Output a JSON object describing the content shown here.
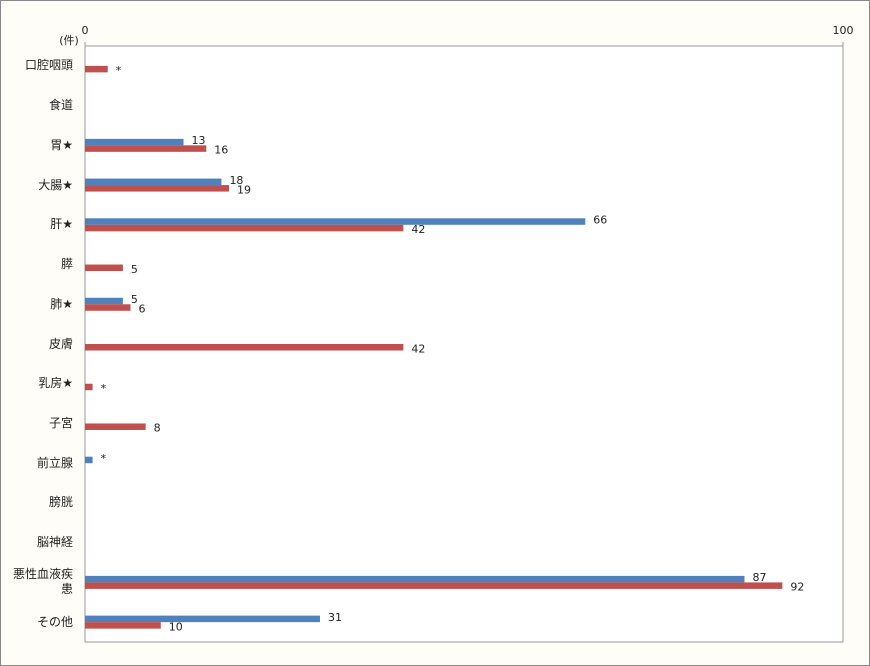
{
  "chart_data": {
    "type": "bar",
    "orientation": "horizontal",
    "unit_label": "(件)",
    "categories": [
      "口腔咽頭",
      "食道",
      "胃★",
      "大腸★",
      "肝★",
      "膵",
      "肺★",
      "皮膚",
      "乳房★",
      "子宮",
      "前立腺",
      "膀胱",
      "脳神経",
      "悪性血液疾患",
      "その他"
    ],
    "series": [
      {
        "color": "#4f81bd",
        "values": [
          null,
          null,
          13,
          18,
          66,
          null,
          5,
          null,
          null,
          null,
          1,
          null,
          null,
          87,
          31
        ],
        "value_labels": [
          null,
          null,
          null,
          null,
          null,
          null,
          null,
          null,
          null,
          null,
          "*",
          null,
          null,
          null,
          null
        ]
      },
      {
        "color": "#c0504d",
        "values": [
          3,
          null,
          16,
          19,
          42,
          5,
          6,
          42,
          1,
          8,
          null,
          null,
          null,
          92,
          10
        ],
        "value_labels": [
          "*",
          null,
          null,
          null,
          null,
          null,
          null,
          null,
          "*",
          null,
          null,
          null,
          null,
          null,
          null
        ]
      }
    ],
    "xlim": [
      0,
      100
    ],
    "xticks": [
      0,
      100
    ],
    "grid": false
  }
}
